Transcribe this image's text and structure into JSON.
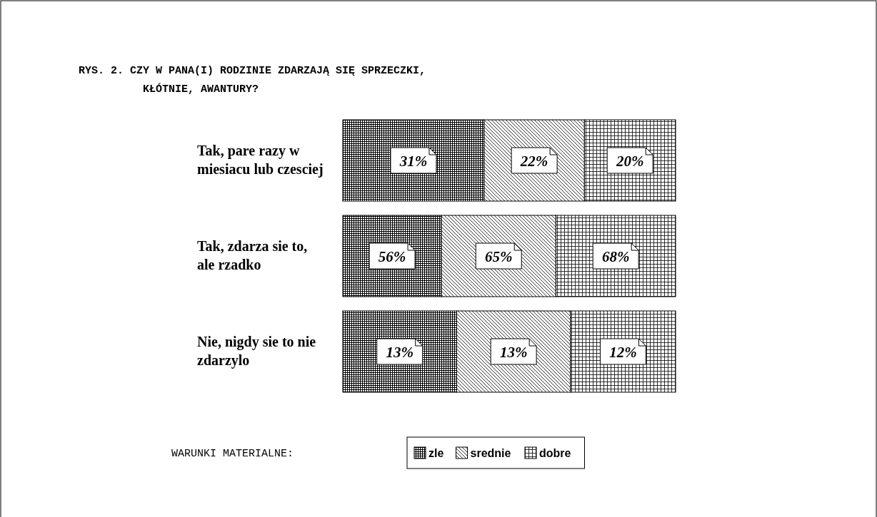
{
  "chart_data": [
    {
      "type": "bar",
      "orientation": "horizontal",
      "stacked": true,
      "title": "RYS. 2. CZY W PANA(I) RODZINIE ZDARZAJĄ SIĘ SPRZECZKI, KŁÓTNIE, AWANTURY?",
      "categories": [
        "Tak, pare razy w miesiacu lub czesciej"
      ],
      "series": [
        {
          "color": "#000000",
          "values": [
            31
          ],
          "value_labels": [
            "31%"
          ]
        },
        {
          "color": "#000000",
          "values": [
            22
          ],
          "value_labels": [
            "22%"
          ]
        },
        {
          "color": "#000000",
          "values": [
            20
          ],
          "value_labels": [
            "20%"
          ]
        }
      ]
    },
    {
      "type": "bar",
      "orientation": "horizontal",
      "stacked": true,
      "categories": [
        "Tak, zdarza sie to, ale rzadko"
      ],
      "series": [
        {
          "color": "#000000",
          "values": [
            56
          ],
          "value_labels": [
            "56%"
          ]
        },
        {
          "color": "#000000",
          "values": [
            65
          ],
          "value_labels": [
            "65%"
          ]
        },
        {
          "color": "#000000",
          "values": [
            68
          ],
          "value_labels": [
            "68%"
          ]
        }
      ]
    },
    {
      "type": "bar",
      "orientation": "horizontal",
      "stacked": true,
      "categories": [
        "Nie, nigdy sie to nie zdarzylo"
      ],
      "legend_title": "WARUNKI MATERIALNE:",
      "legend": "bottom",
      "series": [
        {
          "name": "zle",
          "color": "#000000",
          "values": [
            13
          ],
          "value_labels": [
            "13%"
          ]
        },
        {
          "name": "srednie",
          "color": "#000000",
          "values": [
            13
          ],
          "value_labels": [
            "13%"
          ]
        },
        {
          "name": "dobre",
          "color": "#000000",
          "values": [
            12
          ],
          "value_labels": [
            "12%"
          ]
        }
      ]
    }
  ]
}
